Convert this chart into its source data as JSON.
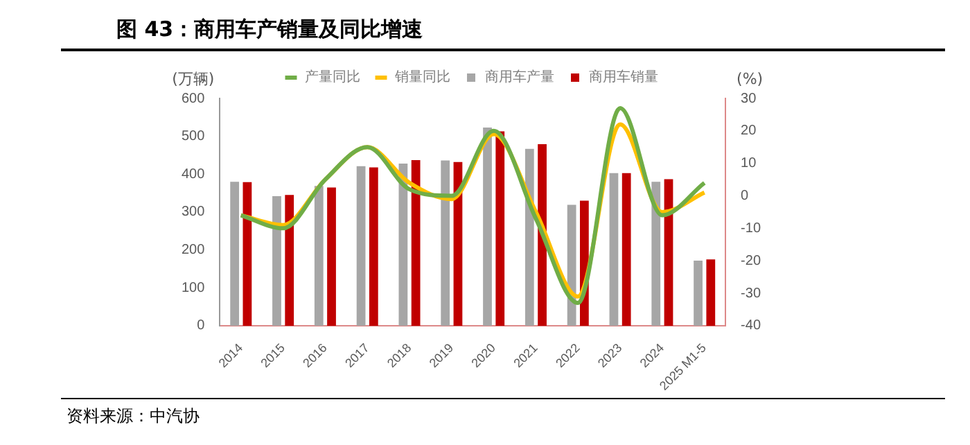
{
  "chart_data": {
    "type": "bar",
    "title": "图 43：商用车产销量及同比增速",
    "ylabel": "(万辆)",
    "y2label": "(%)",
    "categories": [
      "2014",
      "2015",
      "2016",
      "2017",
      "2018",
      "2019",
      "2020",
      "2021",
      "2022",
      "2023",
      "2024",
      "2025 M1-5"
    ],
    "series": [
      {
        "name": "商用车产量",
        "color": "#a6a6a6",
        "values": [
          380,
          342,
          369,
          421,
          428,
          436,
          523,
          467,
          319,
          403,
          380,
          172
        ]
      },
      {
        "name": "商用车销量",
        "color": "#c00000",
        "values": [
          379,
          345,
          365,
          418,
          437,
          432,
          513,
          479,
          330,
          403,
          387,
          175
        ]
      },
      {
        "name": "产量同比",
        "type": "line",
        "axis": "y2",
        "color": "#70ad47",
        "values": [
          -6,
          -10,
          5,
          15,
          2,
          0,
          20,
          -7,
          -33,
          27,
          -6,
          4
        ]
      },
      {
        "name": "销量同比",
        "type": "line",
        "axis": "y2",
        "color": "#ffc000",
        "values": [
          -6,
          -9,
          5,
          15,
          4,
          -1,
          19,
          -5,
          -31,
          22,
          -5,
          1
        ]
      }
    ],
    "ylim": [
      0,
      600
    ],
    "yticks": [
      0,
      100,
      200,
      300,
      400,
      500,
      600
    ],
    "y2lim": [
      -40,
      30
    ],
    "y2ticks": [
      -40,
      -30,
      -20,
      -10,
      0,
      10,
      20,
      30
    ],
    "grid": false,
    "legend": "top",
    "marker": "none",
    "annotations": [
      "资料来源：中汽协"
    ]
  }
}
